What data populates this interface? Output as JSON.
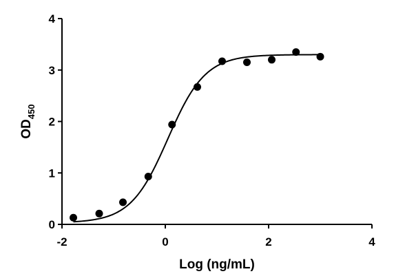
{
  "chart_data": {
    "type": "scatter",
    "title": "",
    "xlabel": "Log (ng/mL)",
    "ylabel_main": "OD",
    "ylabel_sub": "450",
    "xlim": [
      -2,
      4
    ],
    "ylim": [
      0,
      4
    ],
    "xticks": [
      "-2",
      "0",
      "2",
      "4"
    ],
    "yticks": [
      "0",
      "1",
      "2",
      "3",
      "4"
    ],
    "xtick_values": [
      -2,
      0,
      2,
      4
    ],
    "ytick_values": [
      0,
      1,
      2,
      3,
      4
    ],
    "grid": false,
    "series": [
      {
        "points": [
          {
            "x": -1.78,
            "y": 0.13
          },
          {
            "x": -1.28,
            "y": 0.21
          },
          {
            "x": -0.82,
            "y": 0.43
          },
          {
            "x": -0.33,
            "y": 0.93
          },
          {
            "x": 0.13,
            "y": 1.94
          },
          {
            "x": 0.62,
            "y": 2.67
          },
          {
            "x": 1.1,
            "y": 3.17
          },
          {
            "x": 1.58,
            "y": 3.15
          },
          {
            "x": 2.06,
            "y": 3.2
          },
          {
            "x": 2.53,
            "y": 3.35
          },
          {
            "x": 3.0,
            "y": 3.26
          }
        ],
        "fit": {
          "model": "4PL",
          "bottom": 0.03,
          "top": 3.3,
          "logEC50": 0.05,
          "hill": 1.2
        },
        "color": "#000000"
      }
    ]
  }
}
